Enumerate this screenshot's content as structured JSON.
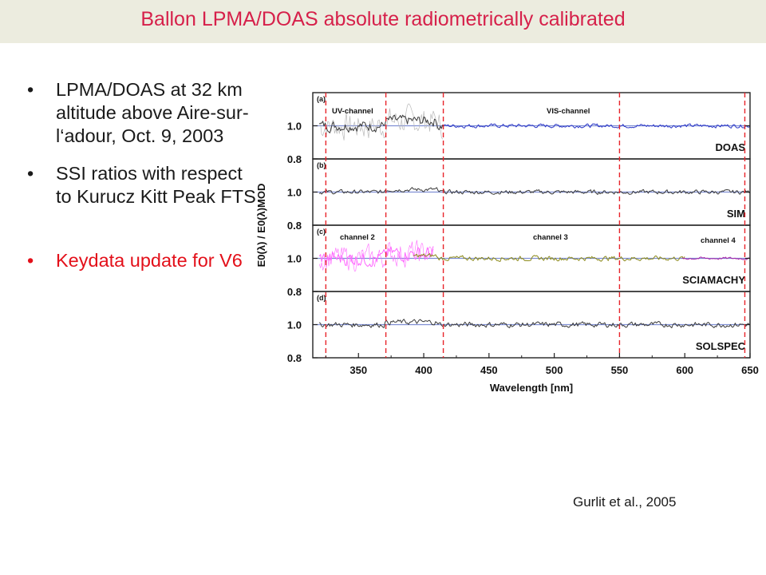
{
  "slide": {
    "title": "Ballon LPMA/DOAS absolute radiometrically calibrated",
    "bullets": [
      {
        "text": "LPMA/DOAS  at 32 km altitude above Aire-sur-l‘adour, Oct. 9, 2003"
      },
      {
        "text": "SSI ratios with respect to Kurucz Kitt Peak FTS"
      },
      {
        "text": "Keydata update for V6"
      }
    ],
    "bullet_glyph": "•",
    "citation": "Gurlit et al., 2005"
  },
  "colors": {
    "title": "#d6204a",
    "highlight": "#e3101a",
    "doas_uv": "#3a3a3a",
    "doas_uv_light": "#b9b9b9",
    "doas_vis": "#2d38c8",
    "sciamachy_ch2": "#ff66ff",
    "sciamachy_ch2_dark": "#bb33cc",
    "sciamachy_ch3": "#8c8a1a",
    "sciamachy_ch4": "#aa22aa",
    "reference_line": "#7f8fd4",
    "divider": "#e8242a"
  },
  "chart_data": {
    "type": "line",
    "xlabel": "Wavelength [nm]",
    "ylabel": "E0(λ) / E0(λ)MOD",
    "xlim": [
      315,
      650
    ],
    "x_ticks": [
      350,
      400,
      450,
      500,
      550,
      600,
      650
    ],
    "reference_value": 1.0,
    "divider_wavelengths": [
      325,
      371,
      415,
      550,
      646
    ],
    "panels": [
      {
        "tag": "(a)",
        "name": "DOAS",
        "ylim": [
          0.8,
          1.2
        ],
        "y_ticks": [
          1.0,
          0.8
        ],
        "annotations": [
          "UV-channel",
          "VIS-channel"
        ],
        "series": [
          {
            "channel": "UV-channel",
            "range": [
              320,
              415
            ],
            "amplitude": 0.05,
            "color": "doas_uv",
            "noisy_overlay": true
          },
          {
            "channel": "VIS-channel",
            "range": [
              415,
              650
            ],
            "amplitude": 0.018,
            "color": "doas_vis"
          }
        ]
      },
      {
        "tag": "(b)",
        "name": "SIM",
        "ylim": [
          0.8,
          1.2
        ],
        "y_ticks": [
          1.0,
          0.8
        ],
        "annotations": [],
        "series": [
          {
            "channel": "",
            "range": [
              320,
              650
            ],
            "amplitude": 0.02,
            "color": "doas_uv"
          }
        ]
      },
      {
        "tag": "(c)",
        "name": "SCIAMACHY",
        "ylim": [
          0.8,
          1.2
        ],
        "y_ticks": [
          1.0,
          0.8
        ],
        "annotations": [
          "channel 2",
          "channel 3",
          "channel 4"
        ],
        "series": [
          {
            "channel": "channel 2",
            "range": [
              320,
              408
            ],
            "amplitude": 0.07,
            "color": "sciamachy_ch2"
          },
          {
            "channel": "channel 3",
            "range": [
              392,
              600
            ],
            "amplitude": 0.022,
            "color": "sciamachy_ch3"
          },
          {
            "channel": "channel 4",
            "range": [
              598,
              650
            ],
            "amplitude": 0.012,
            "color": "sciamachy_ch4"
          }
        ]
      },
      {
        "tag": "(d)",
        "name": "SOLSPEC",
        "ylim": [
          0.8,
          1.2
        ],
        "y_ticks": [
          1.0,
          0.8
        ],
        "annotations": [],
        "series": [
          {
            "channel": "",
            "range": [
              320,
              650
            ],
            "amplitude": 0.025,
            "color": "doas_uv"
          }
        ]
      }
    ]
  }
}
